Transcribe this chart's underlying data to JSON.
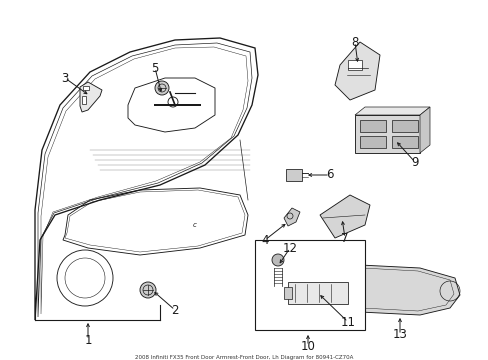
{
  "title": "2008 Infiniti FX35 Front Door Armrest-Front Door, Lh Diagram for 80941-CZ70A",
  "bg_color": "#ffffff",
  "line_color": "#1a1a1a",
  "fig_width": 4.89,
  "fig_height": 3.6,
  "dpi": 100
}
